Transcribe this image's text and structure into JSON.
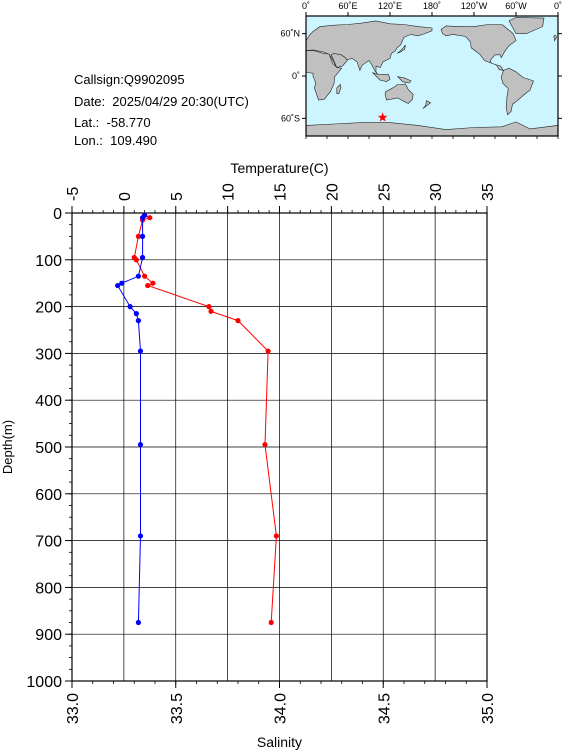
{
  "station": {
    "callsign": "Callsign:Q9902095",
    "date": "Date:  2025/04/29 20:30(UTC)",
    "lat": "Lat.:  -58.770",
    "lon": "Lon.:  109.490"
  },
  "map": {
    "top_ticks": [
      "0˚",
      "60˚E",
      "120˚E",
      "180˚",
      "120˚W",
      "60˚W",
      "0˚"
    ],
    "lat_ticks": [
      "60˚N",
      "0˚",
      "60˚S"
    ],
    "ocean_color": "#ccf5ff",
    "land_color": "#c0c0c0",
    "marker_color": "#ff0000",
    "marker_lat": -58.77,
    "marker_lon": 109.49
  },
  "chart_data": {
    "type": "line",
    "ylabel": "Depth(m)",
    "ylim": [
      0,
      1000
    ],
    "y_inverted": true,
    "yticks": [
      "0",
      "100",
      "200",
      "300",
      "400",
      "500",
      "600",
      "700",
      "800",
      "900",
      "1000"
    ],
    "grid": true,
    "temperature_axis": {
      "label": "Temperature(C)",
      "position": "top",
      "range": [
        -5,
        35
      ],
      "ticks": [
        "-5",
        "0",
        "5",
        "10",
        "15",
        "20",
        "25",
        "30",
        "35"
      ],
      "color": "#ff0000"
    },
    "salinity_axis": {
      "label": "Salinity",
      "position": "bottom",
      "range": [
        33.0,
        35.0
      ],
      "ticks": [
        "33.0",
        "33.5",
        "34.0",
        "34.5",
        "35.0"
      ],
      "color": "#0000ff"
    },
    "series": [
      {
        "axis": "temperature",
        "color": "#ff0000",
        "points": [
          {
            "depth": 5,
            "value": 2.0
          },
          {
            "depth": 10,
            "value": 2.5
          },
          {
            "depth": 15,
            "value": 1.8
          },
          {
            "depth": 50,
            "value": 1.4
          },
          {
            "depth": 95,
            "value": 1.0
          },
          {
            "depth": 100,
            "value": 1.2
          },
          {
            "depth": 135,
            "value": 2.0
          },
          {
            "depth": 150,
            "value": 2.8
          },
          {
            "depth": 155,
            "value": 2.3
          },
          {
            "depth": 200,
            "value": 8.2
          },
          {
            "depth": 210,
            "value": 8.4
          },
          {
            "depth": 230,
            "value": 11.0
          },
          {
            "depth": 295,
            "value": 13.9
          },
          {
            "depth": 495,
            "value": 13.6
          },
          {
            "depth": 690,
            "value": 14.7
          },
          {
            "depth": 875,
            "value": 14.2
          }
        ]
      },
      {
        "axis": "salinity",
        "color": "#0000ff",
        "points": [
          {
            "depth": 5,
            "value": 33.35
          },
          {
            "depth": 10,
            "value": 33.34
          },
          {
            "depth": 50,
            "value": 33.34
          },
          {
            "depth": 95,
            "value": 33.34
          },
          {
            "depth": 135,
            "value": 33.32
          },
          {
            "depth": 150,
            "value": 33.24
          },
          {
            "depth": 155,
            "value": 33.22
          },
          {
            "depth": 200,
            "value": 33.28
          },
          {
            "depth": 215,
            "value": 33.31
          },
          {
            "depth": 230,
            "value": 33.32
          },
          {
            "depth": 295,
            "value": 33.33
          },
          {
            "depth": 495,
            "value": 33.33
          },
          {
            "depth": 690,
            "value": 33.33
          },
          {
            "depth": 875,
            "value": 33.32
          }
        ]
      }
    ]
  }
}
